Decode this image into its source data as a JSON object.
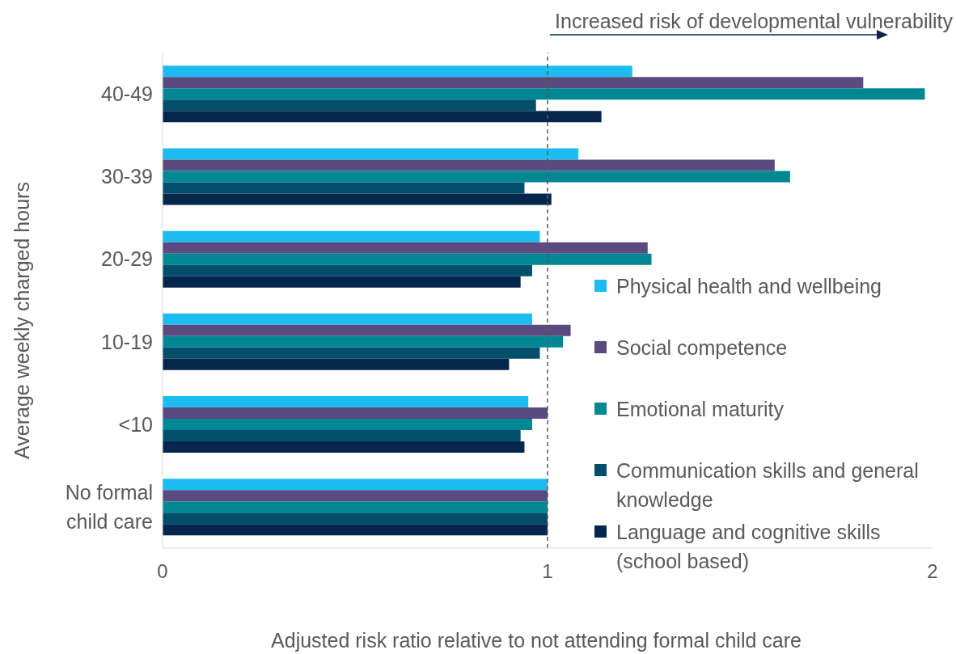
{
  "chart_data": {
    "type": "bar",
    "orientation": "horizontal",
    "categories": [
      "40-49",
      "30-39",
      "20-29",
      "10-19",
      "<10",
      "No formal child care"
    ],
    "series": [
      {
        "name": "Physical health and wellbeing",
        "color": "#1bbcef",
        "values": [
          1.22,
          1.08,
          0.98,
          0.96,
          0.95,
          1
        ]
      },
      {
        "name": "Social competence",
        "color": "#5b4a80",
        "values": [
          1.82,
          1.59,
          1.26,
          1.06,
          1.0,
          1
        ]
      },
      {
        "name": "Emotional maturity",
        "color": "#008794",
        "values": [
          1.98,
          1.63,
          1.27,
          1.04,
          0.96,
          1
        ]
      },
      {
        "name": "Communication skills and general knowledge",
        "color": "#034e6a",
        "values": [
          0.97,
          0.94,
          0.96,
          0.98,
          0.93,
          1
        ]
      },
      {
        "name": "Language and cognitive skills (school based)",
        "color": "#06274d",
        "values": [
          1.14,
          1.01,
          0.93,
          0.9,
          0.94,
          1
        ]
      }
    ],
    "xlim": [
      0,
      2
    ],
    "xticks": [
      0,
      1,
      2
    ],
    "xlabel": "Adjusted risk ratio relative to not attending formal child care",
    "ylabel": "Average weekly charged hours",
    "ref_lines": [
      {
        "axis": "x",
        "value": 1,
        "color": "#595959",
        "line_style": "dashed"
      }
    ],
    "annotations": [
      "Increased risk of developmental vulnerability"
    ],
    "legend": "right"
  }
}
